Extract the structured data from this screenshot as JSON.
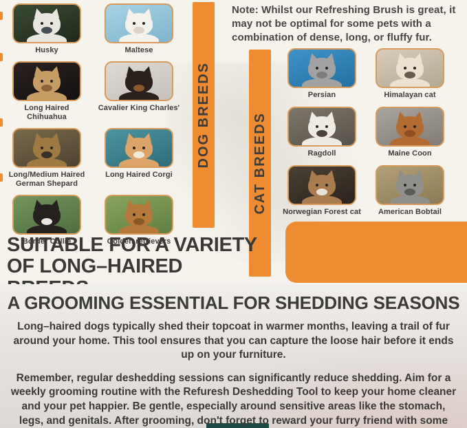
{
  "note": {
    "text": "Note: Whilst our Refreshing Brush is great, it may not be optimal for some pets with a combination of dense, long, or fluffy fur."
  },
  "dog_section": {
    "banner_label": "DOG BREEDS",
    "breeds": [
      {
        "name": "Husky",
        "photo": {
          "bg1": "#3a4a33",
          "bg2": "#1f2a1c",
          "fur": "#e8e6df",
          "muzzle": "#4a4f57"
        }
      },
      {
        "name": "Maltese",
        "photo": {
          "bg1": "#a8d3e4",
          "bg2": "#7fb4cc",
          "fur": "#f4f2ea",
          "muzzle": "#d9d4c6"
        }
      },
      {
        "name": "Long Haired Chihuahua",
        "photo": {
          "bg1": "#2a2220",
          "bg2": "#141010",
          "fur": "#c79d66",
          "muzzle": "#8a6437"
        }
      },
      {
        "name": "Cavalier King Charles'",
        "photo": {
          "bg1": "#ddd9d3",
          "bg2": "#c6c1ba",
          "fur": "#2a211c",
          "muzzle": "#8a5a2e"
        }
      },
      {
        "name": "Long/Medium Haired German Shepard",
        "photo": {
          "bg1": "#7a6a4a",
          "bg2": "#4d4231",
          "fur": "#9c7a42",
          "muzzle": "#3a3126"
        }
      },
      {
        "name": "Long Haired Corgi",
        "photo": {
          "bg1": "#4e93a0",
          "bg2": "#2f6d7a",
          "fur": "#dca468",
          "muzzle": "#f2ead9"
        }
      },
      {
        "name": "Border Collie",
        "photo": {
          "bg1": "#74955c",
          "bg2": "#4e6e3f",
          "fur": "#24211f",
          "muzzle": "#e9e6df"
        }
      },
      {
        "name": "Golden retrievers",
        "photo": {
          "bg1": "#8aa45e",
          "bg2": "#5f7f41",
          "fur": "#b5793b",
          "muzzle": "#8a5825"
        }
      }
    ]
  },
  "cat_section": {
    "banner_label": "CAT BREEDS",
    "breeds": [
      {
        "name": "Persian",
        "photo": {
          "bg1": "#3f93c7",
          "bg2": "#2470a3",
          "fur": "#a2a2a2",
          "muzzle": "#7d7d7d"
        }
      },
      {
        "name": "Himalayan cat",
        "photo": {
          "bg1": "#d9cdbb",
          "bg2": "#b3a891",
          "fur": "#ece1d1",
          "muzzle": "#6b5d4e"
        }
      },
      {
        "name": "Ragdoll",
        "photo": {
          "bg1": "#7d7669",
          "bg2": "#57524a",
          "fur": "#efeae2",
          "muzzle": "#4a423c"
        }
      },
      {
        "name": "Maine Coon",
        "photo": {
          "bg1": "#a9a49c",
          "bg2": "#817d76",
          "fur": "#b26c33",
          "muzzle": "#8f4f22"
        }
      },
      {
        "name": "Norwegian Forest cat",
        "photo": {
          "bg1": "#4a4033",
          "bg2": "#2b241d",
          "fur": "#a97c4f",
          "muzzle": "#e8e2d6"
        }
      },
      {
        "name": "American Bobtail",
        "photo": {
          "bg1": "#b3a077",
          "bg2": "#8b7a55",
          "fur": "#90908a",
          "muzzle": "#5c5c57"
        }
      }
    ]
  },
  "headline": {
    "line1": "SUITABLE FOR A VARIETY",
    "line2": "OF LONG–HAIRED BREEDS"
  },
  "grooming_section": {
    "title": "A GROOMING ESSENTIAL FOR SHEDDING SEASONS",
    "paragraph1": "Long–haired dogs typically shed their topcoat in warmer months, leaving a trail of fur around your home. This tool ensures that you can capture the loose hair before it ends up on your furniture.",
    "paragraph2": "Remember, regular deshedding sessions can significantly reduce shedding. Aim for a weekly grooming routine with the Refuresh Deshedding Tool to keep your home cleaner and your pet happier. Be gentle, especially around sensitive areas like the stomach, legs, and genitals. After grooming, don't forget to reward your furry friend with some well–deserved snuggles."
  },
  "colors": {
    "accent_orange": "#ef8b31",
    "frame_border": "#d99b5c",
    "heading_dark": "#3a3936",
    "body_text": "#3b3a38",
    "teaser_teal": "#1d4a42",
    "art_background": "#f6f3ed",
    "bottom_background": "#e2dfdc"
  }
}
